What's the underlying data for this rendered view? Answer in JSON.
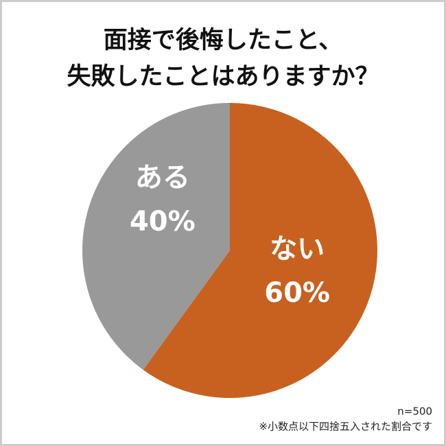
{
  "chart_data": {
    "type": "pie",
    "title": [
      "面接で後悔したこと、",
      "失敗したことはありますか？"
    ],
    "categories": [
      "ない",
      "ある"
    ],
    "values": [
      60,
      40
    ],
    "value_labels": [
      "60%",
      "40%"
    ],
    "colors": [
      "#c8611f",
      "#999999"
    ],
    "notes": [
      "n=500",
      "※小数点以下四捨五入された割合です"
    ]
  }
}
